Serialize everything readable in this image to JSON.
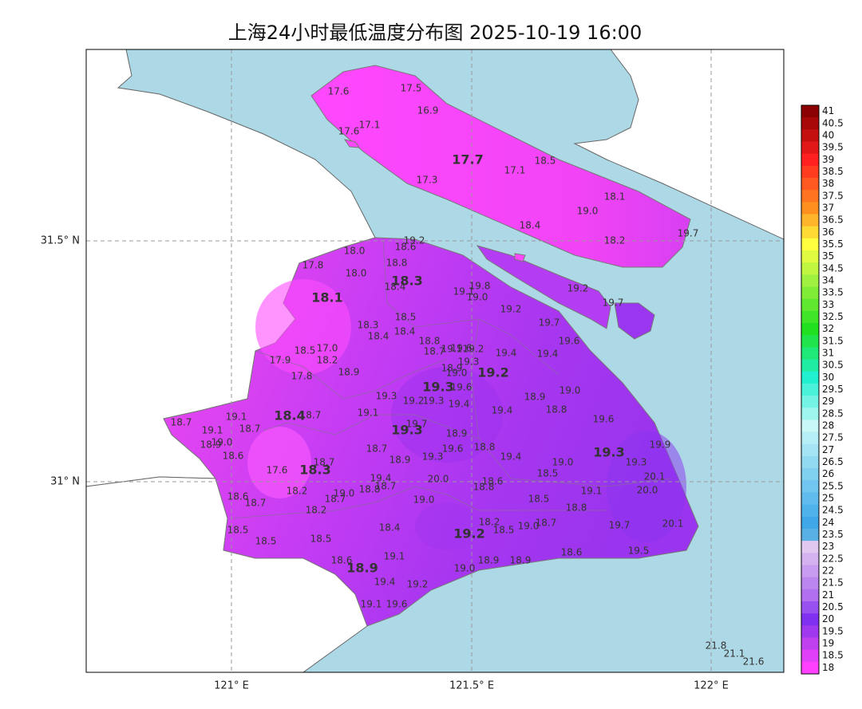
{
  "header": {
    "title": "上海24小时最低温度分布图 2025-10-19 16:00"
  },
  "axes": {
    "lat_labels": [
      "31.5° N",
      "31° N"
    ],
    "lon_labels": [
      "121° E",
      "121.5° E",
      "122° E"
    ]
  },
  "area_values": [
    "17.7",
    "18.3",
    "18.1",
    "19.2",
    "19.3",
    "18.4",
    "19.3",
    "19.3",
    "18.3",
    "19.2",
    "18.9"
  ],
  "station_values": [
    "17.6",
    "17.5",
    "16.9",
    "17.1",
    "17.6",
    "17.1",
    "18.5",
    "17.3",
    "18.1",
    "19.0",
    "18.4",
    "18.2",
    "19.7",
    "19.2",
    "18.6",
    "18.0",
    "17.8",
    "18.8",
    "18.0",
    "18.4",
    "19.8",
    "19.1",
    "19.0",
    "19.2",
    "19.2",
    "19.7",
    "18.3",
    "18.5",
    "19.7",
    "18.4",
    "18.4",
    "19.6",
    "18.8",
    "17.0",
    "18.5",
    "18.7",
    "19.1",
    "19.6",
    "19.2",
    "19.4",
    "19.4",
    "17.9",
    "18.2",
    "19.3",
    "18.9",
    "18.9",
    "19.0",
    "17.8",
    "19.6",
    "19.0",
    "18.9",
    "19.3",
    "19.2",
    "19.3",
    "19.4",
    "18.8",
    "19.4",
    "19.1",
    "18.7",
    "19.1",
    "18.7",
    "19.6",
    "19.7",
    "19.1",
    "18.7",
    "18.9",
    "19.0",
    "18.9",
    "19.9",
    "18.8",
    "18.7",
    "19.6",
    "18.6",
    "19.3",
    "18.9",
    "19.4",
    "19.0",
    "18.7",
    "19.3",
    "17.6",
    "18.5",
    "20.1",
    "19.4",
    "20.0",
    "18.6",
    "18.8",
    "18.7",
    "18.8",
    "19.1",
    "20.0",
    "18.2",
    "19.0",
    "18.7",
    "18.6",
    "18.7",
    "19.0",
    "18.5",
    "18.8",
    "18.2",
    "20.1",
    "18.2",
    "18.7",
    "19.0",
    "18.5",
    "19.7",
    "18.4",
    "18.5",
    "18.5",
    "18.5",
    "19.5",
    "18.6",
    "19.1",
    "18.6",
    "18.9",
    "18.9",
    "19.0",
    "19.4",
    "19.2",
    "19.1",
    "19.6",
    "21.8",
    "21.1",
    "21.6"
  ],
  "colorbar": {
    "ticks": [
      "41",
      "40.5",
      "40",
      "39.5",
      "39",
      "38.5",
      "38",
      "37.5",
      "37",
      "36.5",
      "36",
      "35.5",
      "35",
      "34.5",
      "34",
      "33.5",
      "33",
      "32.5",
      "32",
      "31.5",
      "31",
      "30.5",
      "30",
      "29.5",
      "29",
      "28.5",
      "28",
      "27.5",
      "27",
      "26.5",
      "26",
      "25.5",
      "25",
      "24.5",
      "24",
      "23.5",
      "23",
      "22.5",
      "22",
      "21.5",
      "21",
      "20.5",
      "20",
      "19.5",
      "19",
      "18.5",
      "18"
    ]
  }
}
